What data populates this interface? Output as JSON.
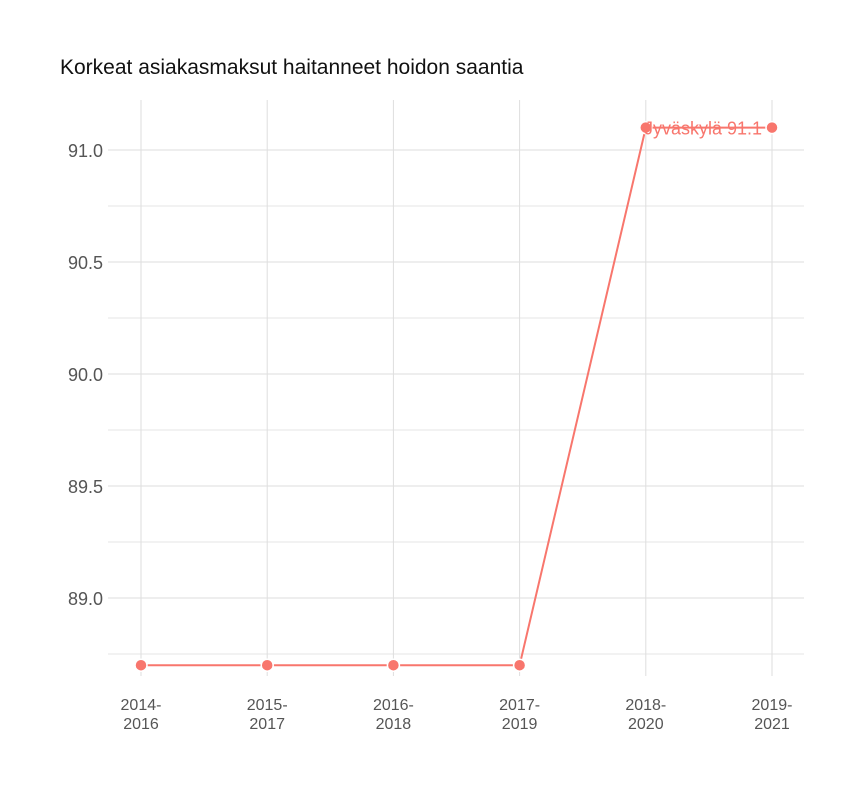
{
  "chart_data": {
    "type": "line",
    "title": "Korkeat asiakasmaksut haitanneet hoidon saantia",
    "xlabel": "",
    "ylabel": "",
    "categories": [
      "2014-2016",
      "2015-2017",
      "2016-2018",
      "2017-2019",
      "2018-2020",
      "2019-2021"
    ],
    "category_labels": [
      [
        "2014-",
        "2016"
      ],
      [
        "2015-",
        "2017"
      ],
      [
        "2016-",
        "2018"
      ],
      [
        "2017-",
        "2019"
      ],
      [
        "2018-",
        "2020"
      ],
      [
        "2019-",
        "2021"
      ]
    ],
    "series": [
      {
        "name": "Jyväskylä",
        "color": "#F8766D",
        "values": [
          88.7,
          88.7,
          88.7,
          88.7,
          91.1,
          91.1
        ]
      }
    ],
    "y_ticks": [
      89.0,
      89.5,
      90.0,
      90.5,
      91.0
    ],
    "y_tick_labels": [
      "89.0",
      "89.5",
      "90.0",
      "90.5",
      "91.0"
    ],
    "ylim": [
      88.7,
      91.1
    ],
    "grid": true,
    "legend": "none",
    "annotation": {
      "text": "Jyväskylä 91.1",
      "category": "2019-2021",
      "value": 91.1
    }
  }
}
